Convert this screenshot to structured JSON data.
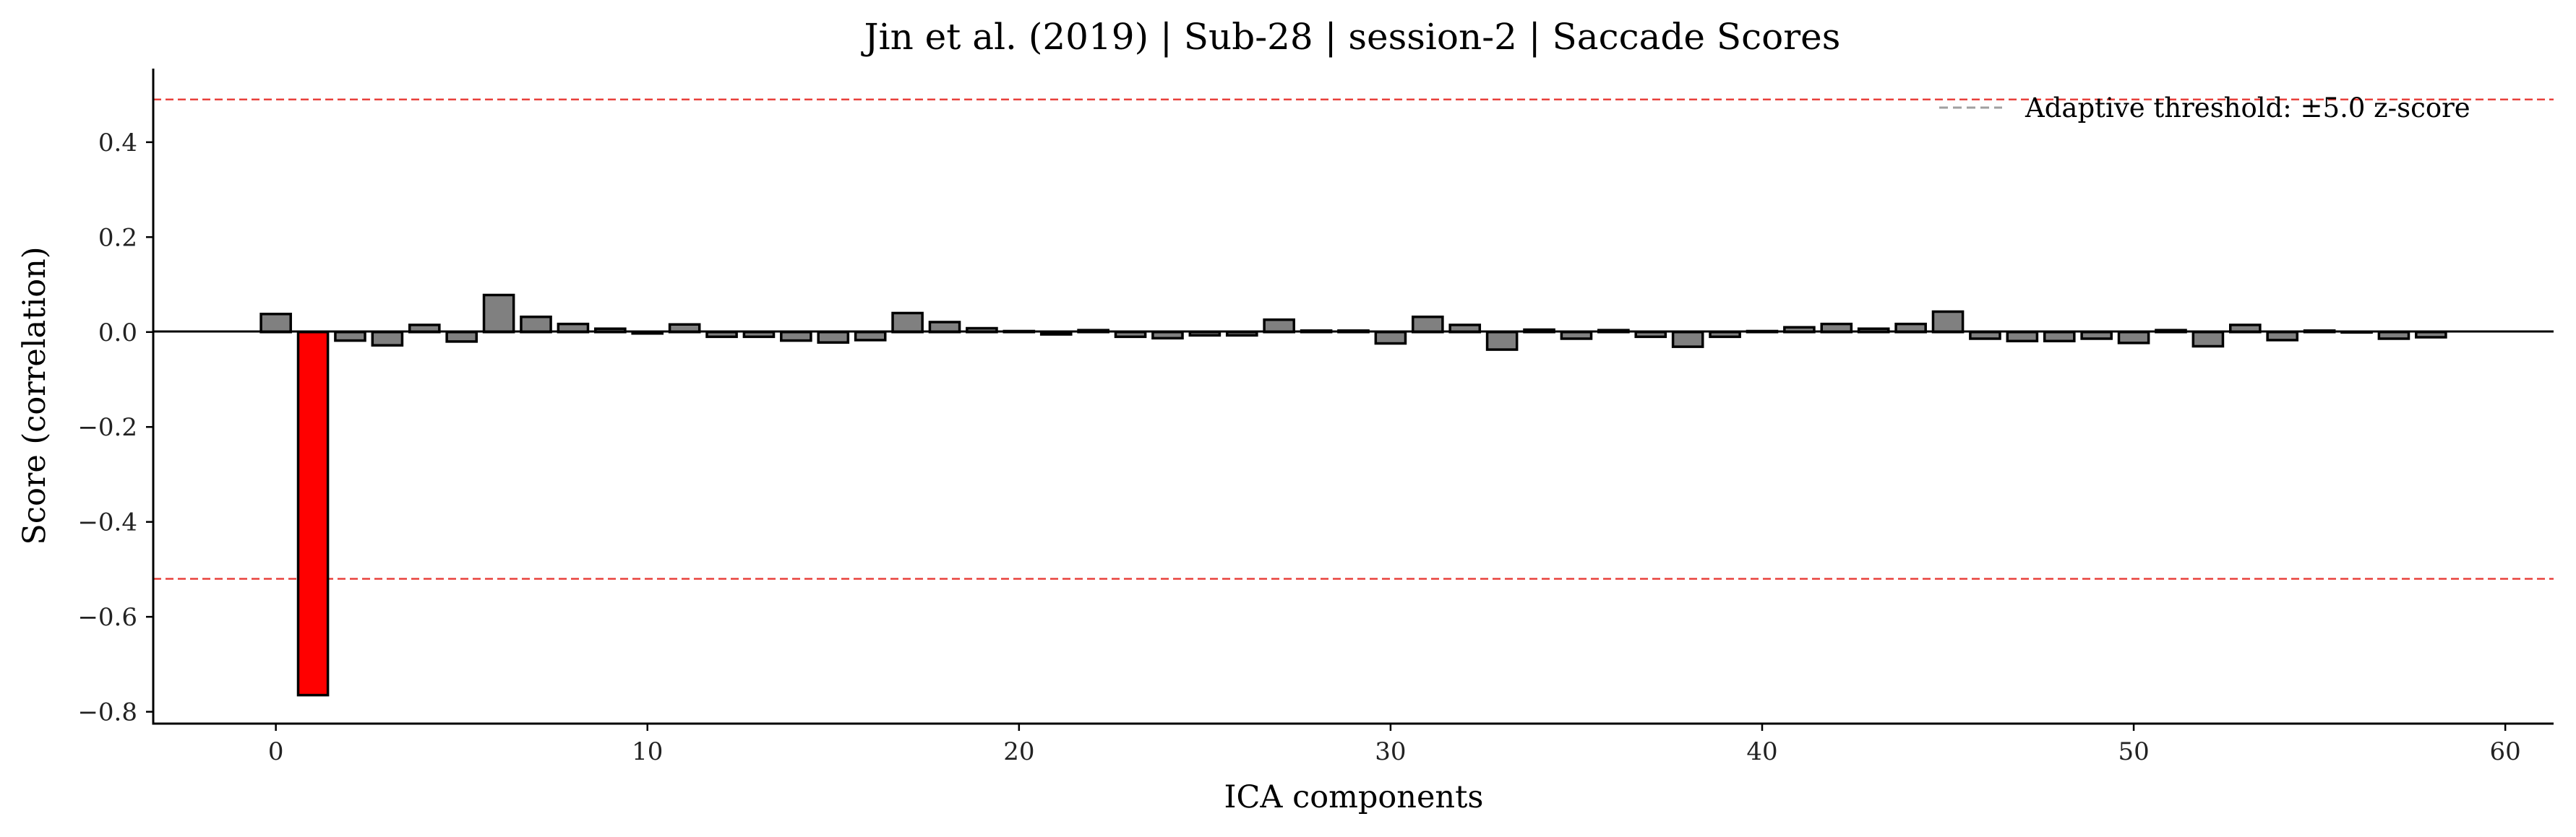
{
  "chart_data": {
    "type": "bar",
    "title": "Jin et al. (2019) | Sub-28 | session-2 | Saccade Scores",
    "xlabel": "ICA components",
    "ylabel": "Score (correlation)",
    "xlim": [
      -3.3,
      61.3
    ],
    "ylim": [
      -0.825,
      0.555
    ],
    "xticks": [
      0,
      10,
      20,
      30,
      40,
      50,
      60
    ],
    "xtick_labels": [
      "0",
      "10",
      "20",
      "30",
      "40",
      "50",
      "60"
    ],
    "yticks": [
      -0.8,
      -0.6,
      -0.4,
      -0.2,
      0.0,
      0.2,
      0.4
    ],
    "ytick_labels": [
      "−0.8",
      "−0.6",
      "−0.4",
      "−0.2",
      "0.0",
      "0.2",
      "0.4"
    ],
    "thresholds": [
      0.49,
      -0.52
    ],
    "legend": {
      "label": "Adaptive threshold: ±5.0 z-score",
      "position": "top-right"
    },
    "colors": {
      "default": "#808080",
      "flagged": "#ff0000",
      "edge": "#000000",
      "threshold": "#e8413c",
      "zero_line": "#000000"
    },
    "flagged_components": [
      1
    ],
    "series": [
      {
        "x": [
          0,
          1,
          2,
          3,
          4,
          5,
          6,
          7,
          8,
          9,
          10,
          11,
          12,
          13,
          14,
          15,
          16,
          17,
          18,
          19,
          20,
          21,
          22,
          23,
          24,
          25,
          26,
          27,
          28,
          29,
          30,
          31,
          32,
          33,
          34,
          35,
          36,
          37,
          38,
          39,
          40,
          41,
          42,
          43,
          44,
          45,
          46,
          47,
          48,
          49,
          50,
          51,
          52,
          53,
          54,
          55,
          56,
          57,
          58
        ],
        "values": [
          0.038,
          -0.765,
          -0.018,
          -0.028,
          0.015,
          -0.02,
          0.078,
          0.032,
          0.017,
          0.007,
          -0.003,
          0.016,
          -0.01,
          -0.01,
          -0.018,
          -0.022,
          -0.017,
          0.04,
          0.021,
          0.008,
          0.002,
          -0.005,
          0.004,
          -0.01,
          -0.013,
          -0.007,
          -0.007,
          0.026,
          0.003,
          0.003,
          -0.024,
          0.032,
          0.015,
          -0.037,
          0.005,
          -0.014,
          0.004,
          -0.01,
          -0.031,
          -0.01,
          0.002,
          0.01,
          0.017,
          0.007,
          0.017,
          0.043,
          -0.014,
          -0.019,
          -0.019,
          -0.014,
          -0.023,
          0.004,
          -0.03,
          0.015,
          -0.017,
          0.003,
          0.0,
          -0.014,
          -0.011
        ]
      }
    ]
  }
}
